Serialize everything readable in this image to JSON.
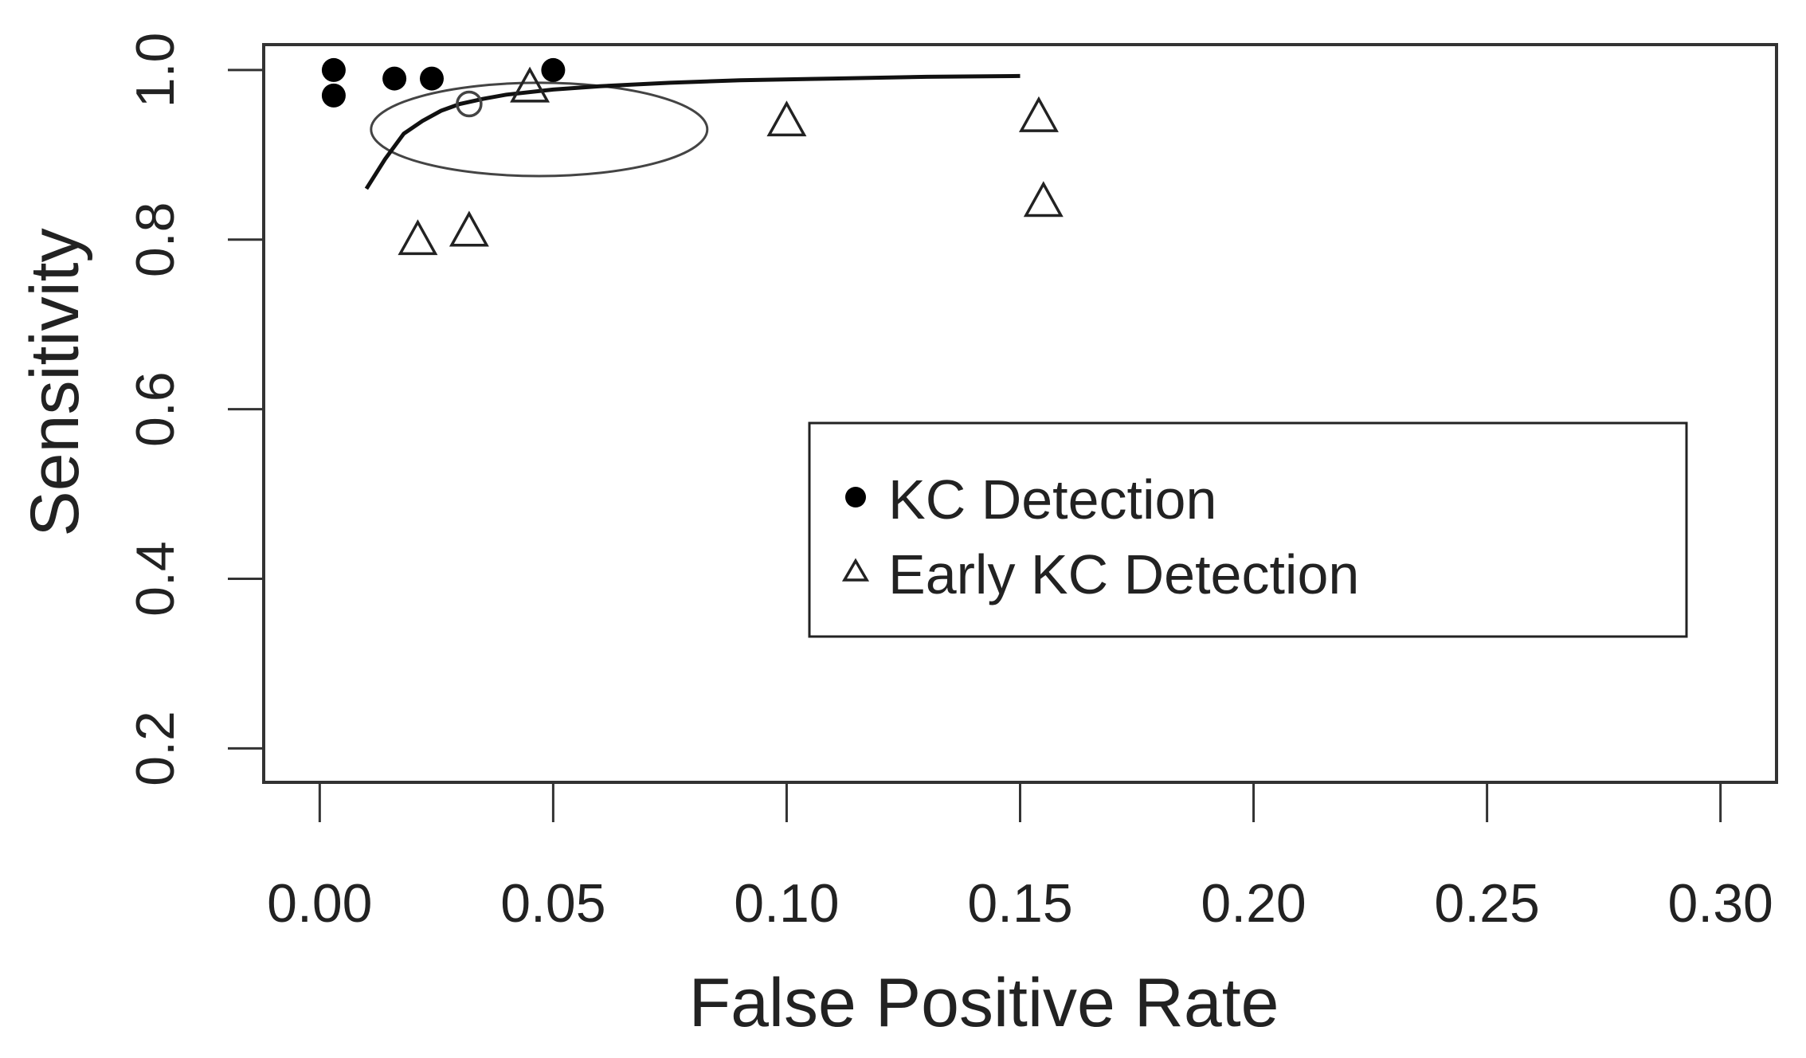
{
  "chart_data": {
    "type": "scatter",
    "title": "",
    "xlabel": "False Positive Rate",
    "ylabel": "Sensitivity",
    "xlim": [
      -0.012,
      0.312
    ],
    "ylim": [
      0.16,
      1.03
    ],
    "xticks": [
      0.0,
      0.05,
      0.1,
      0.15,
      0.2,
      0.25,
      0.3
    ],
    "xtick_labels": [
      "0.00",
      "0.05",
      "0.10",
      "0.15",
      "0.20",
      "0.25",
      "0.30"
    ],
    "yticks": [
      0.2,
      0.4,
      0.6,
      0.8,
      1.0
    ],
    "ytick_labels": [
      "0.2",
      "0.4",
      "0.6",
      "0.8",
      "1.0"
    ],
    "grid": false,
    "legend_position": "center-right",
    "series": [
      {
        "name": "KC Detection",
        "marker": "filled-circle",
        "color": "#000000",
        "points": [
          {
            "x": 0.003,
            "y": 1.0
          },
          {
            "x": 0.003,
            "y": 0.97
          },
          {
            "x": 0.016,
            "y": 0.99
          },
          {
            "x": 0.024,
            "y": 0.99
          },
          {
            "x": 0.05,
            "y": 1.0
          }
        ]
      },
      {
        "name": "Early KC Detection",
        "marker": "open-triangle",
        "color": "#222222",
        "points": [
          {
            "x": 0.021,
            "y": 0.8
          },
          {
            "x": 0.032,
            "y": 0.81
          },
          {
            "x": 0.045,
            "y": 0.98
          },
          {
            "x": 0.1,
            "y": 0.94
          },
          {
            "x": 0.154,
            "y": 0.945
          },
          {
            "x": 0.155,
            "y": 0.845
          }
        ]
      }
    ],
    "sroc_curve": {
      "name": "SROC curve",
      "x": [
        0.01,
        0.014,
        0.018,
        0.022,
        0.026,
        0.03,
        0.035,
        0.04,
        0.05,
        0.06,
        0.075,
        0.09,
        0.11,
        0.13,
        0.15
      ],
      "y": [
        0.86,
        0.895,
        0.925,
        0.94,
        0.952,
        0.96,
        0.966,
        0.971,
        0.977,
        0.981,
        0.985,
        0.988,
        0.99,
        0.992,
        0.993
      ]
    },
    "summary_point": {
      "x": 0.032,
      "y": 0.96,
      "marker": "open-circle"
    },
    "confidence_ellipse": {
      "center_x": 0.047,
      "center_y": 0.93,
      "semi_x": 0.036,
      "semi_y": 0.055
    }
  }
}
